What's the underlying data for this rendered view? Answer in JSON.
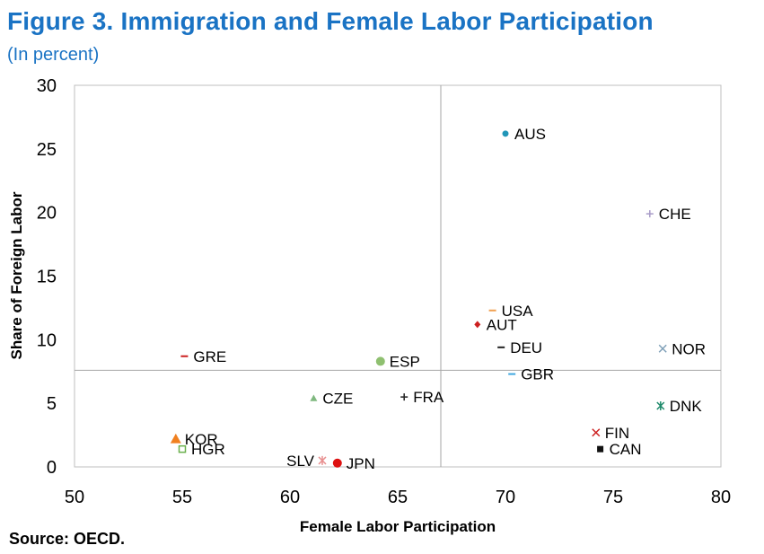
{
  "header": {
    "title": "Figure 3. Immigration and Female Labor Participation",
    "subtitle": "(In percent)"
  },
  "footer": {
    "source": "Source: OECD."
  },
  "chart_data": {
    "type": "scatter",
    "xlabel": "Female Labor Participation",
    "ylabel": "Share of Foreign Labor",
    "xlim": [
      50,
      80
    ],
    "ylim": [
      0,
      30
    ],
    "x_ticks": [
      50,
      55,
      60,
      65,
      70,
      75,
      80
    ],
    "y_ticks": [
      0,
      5,
      10,
      15,
      20,
      25,
      30
    ],
    "grid": false,
    "reference_lines": {
      "x": 67,
      "y": 7.6
    },
    "points": [
      {
        "label": "AUS",
        "x": 70.0,
        "y": 26.2,
        "marker": "circle",
        "color": "#2196b8",
        "label_side": "right"
      },
      {
        "label": "CHE",
        "x": 76.7,
        "y": 19.9,
        "marker": "plus",
        "color": "#a89bc8",
        "label_side": "right"
      },
      {
        "label": "USA",
        "x": 69.4,
        "y": 12.3,
        "marker": "dash",
        "color": "#f0a050",
        "label_side": "right"
      },
      {
        "label": "AUT",
        "x": 68.7,
        "y": 11.2,
        "marker": "diamond",
        "color": "#cc2020",
        "label_side": "right"
      },
      {
        "label": "DEU",
        "x": 69.8,
        "y": 9.4,
        "marker": "dash",
        "color": "#222222",
        "label_side": "right"
      },
      {
        "label": "NOR",
        "x": 77.3,
        "y": 9.3,
        "marker": "x",
        "color": "#7fa0b8",
        "label_side": "right"
      },
      {
        "label": "GBR",
        "x": 70.3,
        "y": 7.3,
        "marker": "dash",
        "color": "#40a8e0",
        "label_side": "right"
      },
      {
        "label": "DNK",
        "x": 77.2,
        "y": 4.8,
        "marker": "asterisk",
        "color": "#1e8a6a",
        "label_side": "right"
      },
      {
        "label": "FIN",
        "x": 74.2,
        "y": 2.7,
        "marker": "x",
        "color": "#cc2020",
        "label_side": "right"
      },
      {
        "label": "CAN",
        "x": 74.4,
        "y": 1.4,
        "marker": "square",
        "color": "#111111",
        "label_side": "right"
      },
      {
        "label": "GRE",
        "x": 55.1,
        "y": 8.7,
        "marker": "dash",
        "color": "#cc2020",
        "label_side": "right"
      },
      {
        "label": "ESP",
        "x": 64.2,
        "y": 8.3,
        "marker": "circle",
        "color": "#8fc070",
        "label_side": "right"
      },
      {
        "label": "CZE",
        "x": 61.1,
        "y": 5.4,
        "marker": "triangle",
        "color": "#7fb87f",
        "label_side": "right"
      },
      {
        "label": "FRA",
        "x": 65.3,
        "y": 5.5,
        "marker": "plus",
        "color": "#222222",
        "label_side": "right"
      },
      {
        "label": "KOR",
        "x": 54.7,
        "y": 2.2,
        "marker": "triangle",
        "color": "#f08020",
        "label_side": "right"
      },
      {
        "label": "HGR",
        "x": 55.0,
        "y": 1.4,
        "marker": "square",
        "color": "#6ab04c",
        "label_side": "right"
      },
      {
        "label": "SLV",
        "x": 61.5,
        "y": 0.5,
        "marker": "asterisk",
        "color": "#e89090",
        "label_side": "left"
      },
      {
        "label": "JPN",
        "x": 62.2,
        "y": 0.3,
        "marker": "circle",
        "color": "#dd1111",
        "label_side": "right"
      }
    ]
  }
}
